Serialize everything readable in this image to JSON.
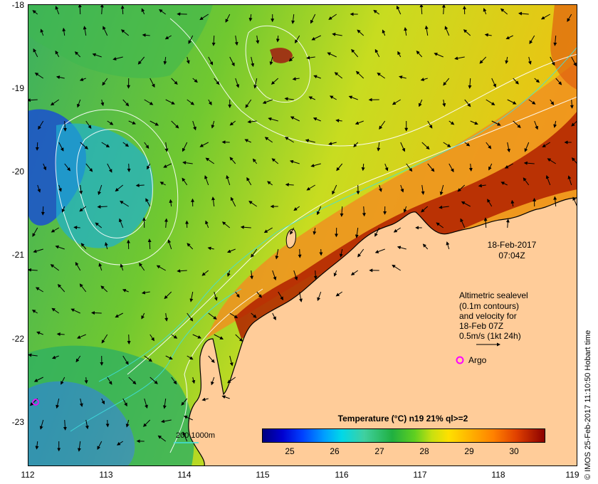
{
  "map": {
    "title": "Temperature (°C) n19 21% ql>=2",
    "date": "18-Feb-2017",
    "time": "07:04Z",
    "legend_lines": [
      "Altimetric sealevel",
      "(0.1m contours)",
      "and velocity for",
      "18-Feb 07Z",
      "0.5m/s (1kt 24h)"
    ],
    "argo_label": "Argo",
    "depth_label": "200  1000m",
    "credit": "© IMOS 25-Feb-2017 11:10:50 Hobart time",
    "lat_ticks": [
      "-18",
      "-19",
      "-20",
      "-21",
      "-22",
      "-23"
    ],
    "lon_ticks": [
      "112",
      "113",
      "114",
      "115",
      "116",
      "117",
      "118",
      "119"
    ],
    "colorbar_ticks": [
      "25",
      "26",
      "27",
      "28",
      "29",
      "30"
    ],
    "colors": {
      "land": "#ffcc99",
      "coastline": "#000000",
      "argo": "#ff00ff",
      "bathymetry": "#40e0e0"
    }
  }
}
